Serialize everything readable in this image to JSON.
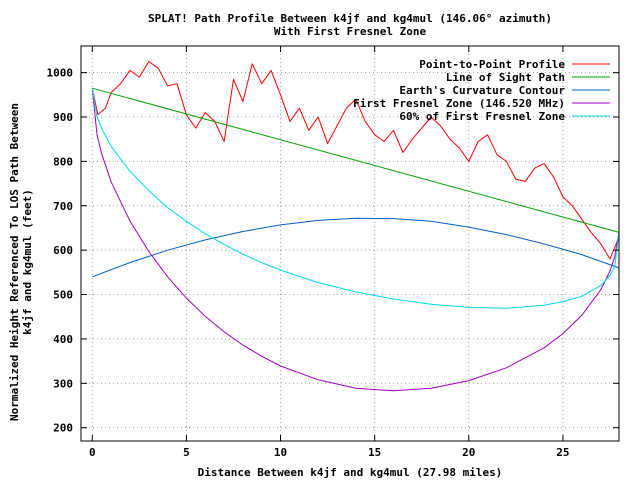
{
  "chart_data": {
    "type": "line",
    "title": "SPLAT! Path Profile Between k4jf and kg4mul (146.06° azimuth)",
    "subtitle": "With First Fresnel Zone",
    "xlabel": "Distance Between k4jf and kg4mul (27.98 miles)",
    "ylabel_line1": "Normalized Height Referenced To LOS Path Between",
    "ylabel_line2": "k4jf and kg4mul (feet)",
    "xlim": [
      -0.6,
      27.98
    ],
    "ylim": [
      170,
      1060
    ],
    "xticks": [
      0,
      5,
      10,
      15,
      20,
      25
    ],
    "yticks": [
      200,
      300,
      400,
      500,
      600,
      700,
      800,
      900,
      1000
    ],
    "grid": true,
    "legend_position": "top-right",
    "series": [
      {
        "name": "Point-to-Point Profile",
        "color": "#ff0000",
        "x": [
          0,
          0.3,
          0.7,
          1.0,
          1.5,
          2.0,
          2.5,
          3.0,
          3.5,
          4.0,
          4.5,
          5.0,
          5.5,
          6.0,
          6.5,
          7.0,
          7.5,
          8.0,
          8.5,
          9.0,
          9.5,
          10.0,
          10.5,
          11.0,
          11.5,
          12.0,
          12.5,
          13.0,
          13.5,
          14.0,
          14.5,
          15.0,
          15.5,
          16.0,
          16.5,
          17.0,
          17.5,
          18.0,
          18.5,
          19.0,
          19.5,
          20.0,
          20.5,
          21.0,
          21.5,
          22.0,
          22.5,
          23.0,
          23.5,
          24.0,
          24.5,
          25.0,
          25.5,
          26.0,
          26.5,
          27.0,
          27.5,
          27.98
        ],
        "y": [
          965,
          905,
          920,
          955,
          975,
          1005,
          990,
          1025,
          1010,
          970,
          975,
          905,
          875,
          910,
          890,
          845,
          985,
          935,
          1020,
          975,
          1005,
          950,
          890,
          920,
          870,
          900,
          840,
          880,
          920,
          940,
          890,
          860,
          845,
          870,
          820,
          850,
          875,
          900,
          880,
          850,
          830,
          800,
          845,
          860,
          815,
          800,
          760,
          755,
          785,
          795,
          765,
          720,
          700,
          670,
          640,
          615,
          580,
          630
        ]
      },
      {
        "name": "Line of Sight Path",
        "color": "#00a000",
        "x": [
          0,
          27.98
        ],
        "y": [
          965,
          640
        ]
      },
      {
        "name": "Earth's Curvature Contour",
        "color": "#0060c0",
        "x": [
          0,
          2,
          4,
          6,
          8,
          10,
          12,
          14,
          16,
          18,
          20,
          22,
          24,
          26,
          27.98
        ],
        "y": [
          540,
          572,
          600,
          623,
          642,
          657,
          667,
          672,
          671,
          665,
          652,
          635,
          614,
          590,
          560
        ]
      },
      {
        "name": "First Fresnel Zone (146.520 MHz)",
        "color": "#a000c0",
        "x": [
          0,
          0.25,
          0.5,
          1,
          2,
          3,
          4,
          5,
          6,
          7,
          8,
          9,
          10,
          12,
          14,
          16,
          18,
          20,
          22,
          24,
          25,
          26,
          27,
          27.5,
          27.75,
          27.98
        ],
        "y": [
          965,
          860,
          817,
          754,
          666,
          597,
          540,
          492,
          451,
          416,
          386,
          361,
          339,
          308,
          289,
          283,
          289,
          306,
          335,
          380,
          412,
          453,
          510,
          553,
          585,
          640
        ]
      },
      {
        "name": "60% of First Fresnel Zone",
        "color": "#00d8e8",
        "x": [
          0,
          0.25,
          0.5,
          1,
          2,
          3,
          4,
          5,
          6,
          7,
          8,
          9,
          10,
          12,
          14,
          16,
          18,
          20,
          22,
          24,
          25,
          26,
          27,
          27.5,
          27.75,
          27.98
        ],
        "y": [
          965,
          901,
          874,
          834,
          778,
          734,
          696,
          665,
          637,
          613,
          591,
          572,
          555,
          527,
          506,
          490,
          478,
          471,
          469,
          476,
          484,
          496,
          520,
          543,
          563,
          640
        ]
      }
    ]
  }
}
